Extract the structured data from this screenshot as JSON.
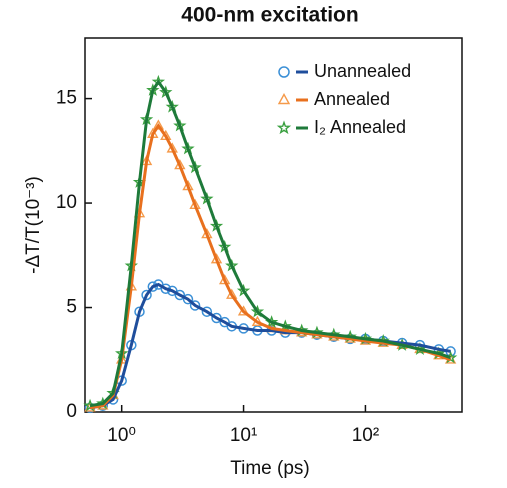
{
  "chart_data": {
    "type": "scatter",
    "title": "400-nm excitation",
    "x_label": "Time (ps)",
    "y_label": "-ΔT/T(10⁻³)",
    "log_x": true,
    "xlim": [
      0.5,
      620
    ],
    "xticks": [
      {
        "value": 1,
        "label": "10⁰"
      },
      {
        "value": 10,
        "label": "10¹"
      },
      {
        "value": 100,
        "label": "10²"
      }
    ],
    "ylim": [
      0,
      17.9
    ],
    "yticks": [
      0,
      5,
      10,
      15
    ],
    "legend": "top-right",
    "x": [
      0.55,
      0.7,
      0.85,
      1.0,
      1.2,
      1.4,
      1.6,
      1.8,
      2.0,
      2.3,
      2.6,
      3,
      3.5,
      4,
      5,
      6,
      7,
      8,
      10,
      13,
      17,
      22,
      30,
      40,
      55,
      75,
      100,
      140,
      200,
      280,
      400,
      500
    ],
    "series": [
      {
        "name": "Unannealed",
        "color": "#1f4e9c",
        "marker_color": "#3a8fd6",
        "marker": "circle",
        "values": [
          0.2,
          0.3,
          0.6,
          1.5,
          3.2,
          4.8,
          5.6,
          6.0,
          6.1,
          5.9,
          5.8,
          5.6,
          5.4,
          5.1,
          4.8,
          4.5,
          4.3,
          4.1,
          4.0,
          3.9,
          3.9,
          3.8,
          3.8,
          3.7,
          3.6,
          3.5,
          3.5,
          3.4,
          3.3,
          3.2,
          3.0,
          2.9
        ]
      },
      {
        "name": "Annealed",
        "color": "#e8701e",
        "marker_color": "#f59a4a",
        "marker": "triangle",
        "values": [
          0.2,
          0.3,
          0.8,
          2.5,
          6,
          9.5,
          12,
          13.3,
          13.7,
          13.2,
          12.6,
          11.8,
          10.8,
          9.9,
          8.5,
          7.3,
          6.3,
          5.6,
          4.8,
          4.3,
          4.0,
          3.9,
          3.8,
          3.7,
          3.6,
          3.5,
          3.4,
          3.3,
          3.2,
          3.0,
          2.7,
          2.5
        ]
      },
      {
        "name": "I₂ Annealed",
        "color": "#1e7a3a",
        "marker_color": "#3aa040",
        "marker": "star",
        "values": [
          0.3,
          0.4,
          0.9,
          2.8,
          7,
          11,
          14,
          15.4,
          15.8,
          15.3,
          14.6,
          13.7,
          12.6,
          11.7,
          10.2,
          8.9,
          7.9,
          7.0,
          5.8,
          4.8,
          4.3,
          4.1,
          3.9,
          3.8,
          3.7,
          3.6,
          3.5,
          3.4,
          3.2,
          3.0,
          2.8,
          2.6
        ]
      }
    ]
  }
}
